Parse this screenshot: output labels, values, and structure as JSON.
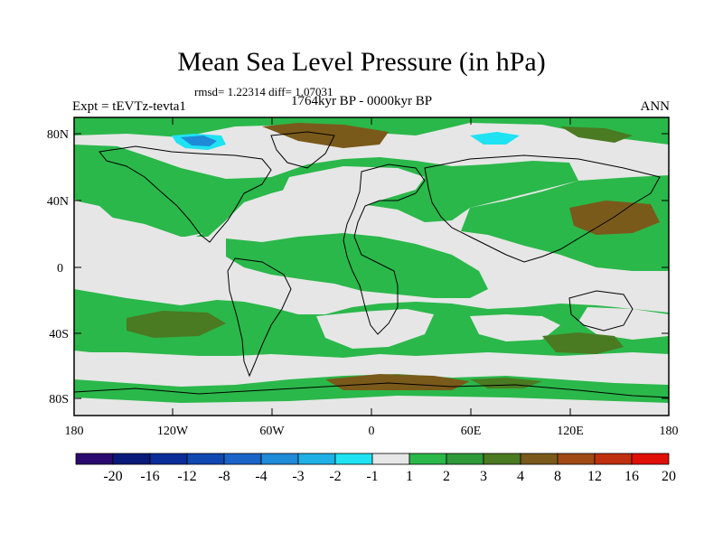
{
  "header": {
    "title": "Mean Sea Level Pressure (in hPa)",
    "stats": "rmsd= 1.22314 diff= 1.07031",
    "experiment": "Expt = tEVTz-tevta1",
    "period": "1764kyr BP - 0000kyr BP",
    "season": "ANN"
  },
  "map": {
    "lat_labels": [
      "80N",
      "40N",
      "0",
      "40S",
      "80S"
    ],
    "lon_labels": [
      "180",
      "120W",
      "60W",
      "0",
      "60E",
      "120E",
      "180"
    ]
  },
  "colorbar": {
    "labels": [
      "-20",
      "-16",
      "-12",
      "-8",
      "-4",
      "-3",
      "-2",
      "-1",
      "1",
      "2",
      "3",
      "4",
      "8",
      "12",
      "16",
      "20"
    ],
    "colors": [
      "#2a0a6e",
      "#0a1a7a",
      "#0b2d9a",
      "#0f48b0",
      "#1a64c8",
      "#1f8ad8",
      "#1fb0e6",
      "#1fe2f2",
      "#e6e6e6",
      "#2ab84a",
      "#2e9a3a",
      "#4a7a22",
      "#7a5a1a",
      "#a04a14",
      "#c0300e",
      "#e01008"
    ]
  },
  "colors": {
    "neutral": "#e6e6e6",
    "green": "#2ab84a",
    "olive": "#4a7a22",
    "brown": "#7a5a1a",
    "cyan": "#1fe2f2",
    "blue": "#1f8ad8"
  }
}
